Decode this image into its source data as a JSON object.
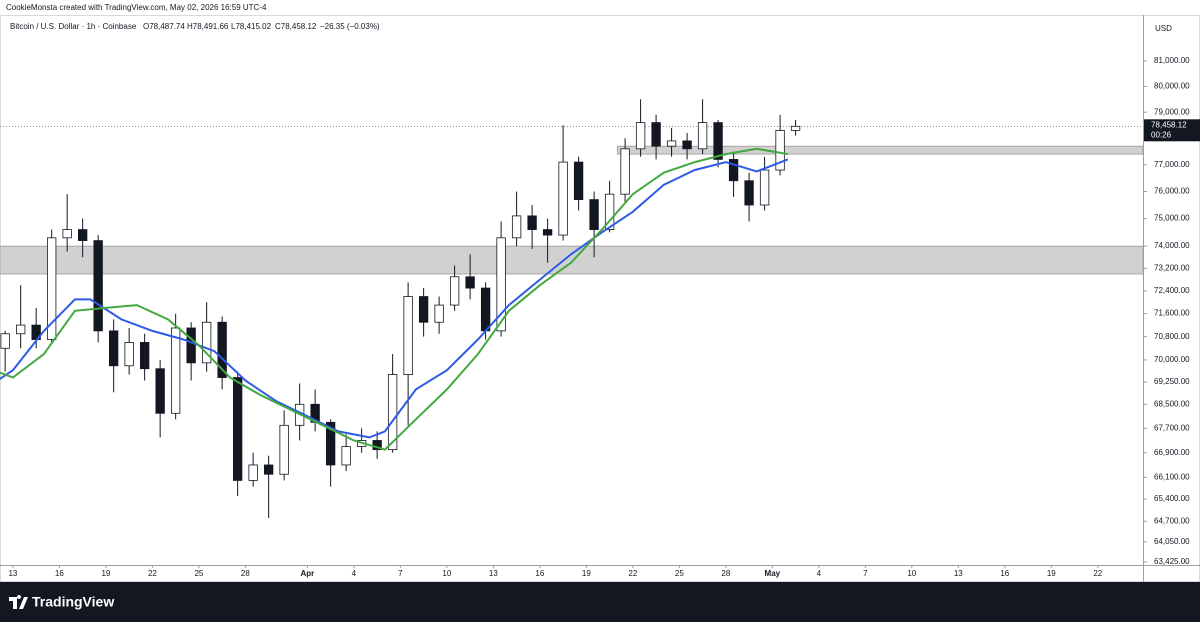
{
  "header": {
    "credit": "CookieMonsta created with TradingView.com, May 02, 2026 16:59 UTC-4"
  },
  "legend": {
    "symbol": "Bitcoin / U.S. Dollar · 1h · Coinbase",
    "open": "O78,487.74",
    "high": "H78,491.66",
    "low": "L78,415.02",
    "close": "C78,458.12",
    "change": "−26.35 (−0.03%)"
  },
  "brand": "TradingView",
  "chart_data": {
    "type": "candlestick",
    "currency": "USD",
    "log_scale": true,
    "grid": false,
    "ylim": [
      63330,
      82840
    ],
    "yticks": [
      {
        "value": 81000,
        "label": "81,000.00"
      },
      {
        "value": 80000,
        "label": "80,000.00"
      },
      {
        "value": 79000,
        "label": "79,000.00"
      },
      {
        "value": 77000,
        "label": "77,000.00"
      },
      {
        "value": 76000,
        "label": "76,000.00"
      },
      {
        "value": 75000,
        "label": "75,000.00"
      },
      {
        "value": 74000,
        "label": "74,000.00"
      },
      {
        "value": 73200,
        "label": "73,200.00"
      },
      {
        "value": 72400,
        "label": "72,400.00"
      },
      {
        "value": 71600,
        "label": "71,600.00"
      },
      {
        "value": 70800,
        "label": "70,800.00"
      },
      {
        "value": 70000,
        "label": "70,000.00"
      },
      {
        "value": 69250,
        "label": "69,250.00"
      },
      {
        "value": 68500,
        "label": "68,500.00"
      },
      {
        "value": 67700,
        "label": "67,700.00"
      },
      {
        "value": 66900,
        "label": "66,900.00"
      },
      {
        "value": 66100,
        "label": "66,100.00"
      },
      {
        "value": 65400,
        "label": "65,400.00"
      },
      {
        "value": 64700,
        "label": "64,700.00"
      },
      {
        "value": 64050,
        "label": "64,050.00"
      },
      {
        "value": 63425,
        "label": "63,425.00"
      }
    ],
    "xlim": [
      "2026-03-12T04:00",
      "2026-05-24T22:00"
    ],
    "xticks": [
      {
        "value": "2026-03-13",
        "label": "13"
      },
      {
        "value": "2026-03-16",
        "label": "16"
      },
      {
        "value": "2026-03-19",
        "label": "19"
      },
      {
        "value": "2026-03-22",
        "label": "22"
      },
      {
        "value": "2026-03-25",
        "label": "25"
      },
      {
        "value": "2026-03-28",
        "label": "28"
      },
      {
        "value": "2026-04-01",
        "label": "Apr"
      },
      {
        "value": "2026-04-04",
        "label": "4"
      },
      {
        "value": "2026-04-07",
        "label": "7"
      },
      {
        "value": "2026-04-10",
        "label": "10"
      },
      {
        "value": "2026-04-13",
        "label": "13"
      },
      {
        "value": "2026-04-16",
        "label": "16"
      },
      {
        "value": "2026-04-19",
        "label": "19"
      },
      {
        "value": "2026-04-22",
        "label": "22"
      },
      {
        "value": "2026-04-25",
        "label": "25"
      },
      {
        "value": "2026-04-28",
        "label": "28"
      },
      {
        "value": "2026-05-01",
        "label": "May"
      },
      {
        "value": "2026-05-04",
        "label": "4"
      },
      {
        "value": "2026-05-07",
        "label": "7"
      },
      {
        "value": "2026-05-10",
        "label": "10"
      },
      {
        "value": "2026-05-13",
        "label": "13"
      },
      {
        "value": "2026-05-16",
        "label": "16"
      },
      {
        "value": "2026-05-19",
        "label": "19"
      },
      {
        "value": "2026-05-22",
        "label": "22"
      }
    ],
    "candle_color": "#131722",
    "x": [
      "2026-03-12",
      "2026-03-13",
      "2026-03-14",
      "2026-03-15",
      "2026-03-16",
      "2026-03-17",
      "2026-03-18",
      "2026-03-19",
      "2026-03-20",
      "2026-03-21",
      "2026-03-22",
      "2026-03-23",
      "2026-03-24",
      "2026-03-25",
      "2026-03-26",
      "2026-03-27",
      "2026-03-28",
      "2026-03-29",
      "2026-03-30",
      "2026-03-31",
      "2026-04-01",
      "2026-04-02",
      "2026-04-03",
      "2026-04-04",
      "2026-04-05",
      "2026-04-06",
      "2026-04-07",
      "2026-04-08",
      "2026-04-09",
      "2026-04-10",
      "2026-04-11",
      "2026-04-12",
      "2026-04-13",
      "2026-04-14",
      "2026-04-15",
      "2026-04-16",
      "2026-04-17",
      "2026-04-18",
      "2026-04-19",
      "2026-04-20",
      "2026-04-21",
      "2026-04-22",
      "2026-04-23",
      "2026-04-24",
      "2026-04-25",
      "2026-04-26",
      "2026-04-27",
      "2026-04-28",
      "2026-04-29",
      "2026-04-30",
      "2026-05-01",
      "2026-05-02"
    ],
    "open": [
      70400,
      70900,
      71200,
      70700,
      74300,
      74600,
      74200,
      71000,
      69800,
      70600,
      69700,
      68200,
      71100,
      69900,
      71300,
      69400,
      66000,
      66500,
      66200,
      67800,
      68500,
      67900,
      66500,
      67100,
      67300,
      67000,
      69500,
      72200,
      71300,
      71900,
      72900,
      72500,
      71000,
      74300,
      75100,
      74600,
      74400,
      77100,
      75700,
      74600,
      75900,
      77600,
      78600,
      77700,
      77900,
      77600,
      78600,
      77200,
      76400,
      75500,
      76800,
      78300
    ],
    "high": [
      71000,
      72600,
      71800,
      74600,
      75900,
      75000,
      74400,
      71400,
      71100,
      70900,
      70000,
      71600,
      71300,
      72000,
      71500,
      69600,
      66900,
      66800,
      68300,
      69200,
      69000,
      68000,
      67500,
      67700,
      67600,
      70200,
      72700,
      72500,
      72200,
      73300,
      73700,
      72700,
      74900,
      76000,
      75500,
      75000,
      78500,
      77300,
      76000,
      76400,
      78000,
      79500,
      78900,
      78400,
      78200,
      79500,
      78700,
      77500,
      76700,
      77300,
      78900,
      78700
    ],
    "low": [
      69600,
      70400,
      70400,
      70600,
      73800,
      73600,
      70600,
      68900,
      69500,
      69300,
      67400,
      68000,
      69300,
      69600,
      69000,
      65500,
      65800,
      64800,
      66000,
      67300,
      67600,
      65800,
      66300,
      66900,
      66700,
      66900,
      67800,
      70800,
      70900,
      71700,
      72100,
      70700,
      70800,
      74000,
      73900,
      73400,
      74200,
      75300,
      73600,
      74500,
      75600,
      77300,
      77200,
      77300,
      77200,
      77400,
      76900,
      75800,
      74900,
      75300,
      76600,
      78100
    ],
    "close": [
      70900,
      71200,
      70700,
      74300,
      74600,
      74200,
      71000,
      69800,
      70600,
      69700,
      68200,
      71100,
      69900,
      71300,
      69400,
      66000,
      66500,
      66200,
      67800,
      68500,
      67900,
      66500,
      67100,
      67300,
      67000,
      69500,
      72200,
      71300,
      71900,
      72900,
      72500,
      71000,
      74300,
      75100,
      74600,
      74400,
      77100,
      75700,
      74600,
      75900,
      77600,
      78600,
      77700,
      77900,
      77600,
      78600,
      77200,
      76400,
      75500,
      76800,
      78300,
      78458.12
    ],
    "lines": [
      {
        "color": "#2e5be6",
        "x": [
          "2026-03-12",
          "2026-03-13",
          "2026-03-15",
          "2026-03-17",
          "2026-03-18",
          "2026-03-20",
          "2026-03-22",
          "2026-03-24",
          "2026-03-26",
          "2026-03-28",
          "2026-03-30",
          "2026-04-01",
          "2026-04-03",
          "2026-04-05",
          "2026-04-06",
          "2026-04-08",
          "2026-04-10",
          "2026-04-12",
          "2026-04-14",
          "2026-04-16",
          "2026-04-18",
          "2026-04-20",
          "2026-04-22",
          "2026-04-24",
          "2026-04-26",
          "2026-04-28",
          "2026-04-30",
          "2026-05-02"
        ],
        "values": [
          69300,
          69650,
          71000,
          72100,
          72100,
          71400,
          71000,
          70700,
          70300,
          69300,
          68600,
          68100,
          67600,
          67400,
          67600,
          69000,
          69650,
          70700,
          71900,
          72800,
          73700,
          74500,
          75250,
          76250,
          76800,
          77100,
          76750,
          77200
        ]
      },
      {
        "color": "#43a83f",
        "x": [
          "2026-03-12",
          "2026-03-13",
          "2026-03-15",
          "2026-03-17",
          "2026-03-19",
          "2026-03-21",
          "2026-03-23",
          "2026-03-25",
          "2026-03-27",
          "2026-03-29",
          "2026-03-31",
          "2026-04-02",
          "2026-04-04",
          "2026-04-06",
          "2026-04-08",
          "2026-04-10",
          "2026-04-12",
          "2026-04-14",
          "2026-04-16",
          "2026-04-18",
          "2026-04-20",
          "2026-04-22",
          "2026-04-24",
          "2026-04-26",
          "2026-04-28",
          "2026-04-30",
          "2026-05-02"
        ],
        "values": [
          69600,
          69400,
          70200,
          71700,
          71800,
          71900,
          71400,
          70500,
          69400,
          68800,
          68300,
          67800,
          67300,
          67000,
          68000,
          69000,
          70200,
          71700,
          72600,
          73400,
          74600,
          75900,
          76700,
          77100,
          77400,
          77600,
          77400
        ]
      }
    ],
    "zones": [
      {
        "from": 73000,
        "to": 74000,
        "color": "#d1d1d1"
      },
      {
        "from": 77400,
        "to": 77700,
        "start": "2026-04-21",
        "color": "#d1d1d1"
      }
    ],
    "last_price": {
      "value": 78458.12,
      "label": "78,458.12",
      "countdown": "00:26"
    }
  }
}
